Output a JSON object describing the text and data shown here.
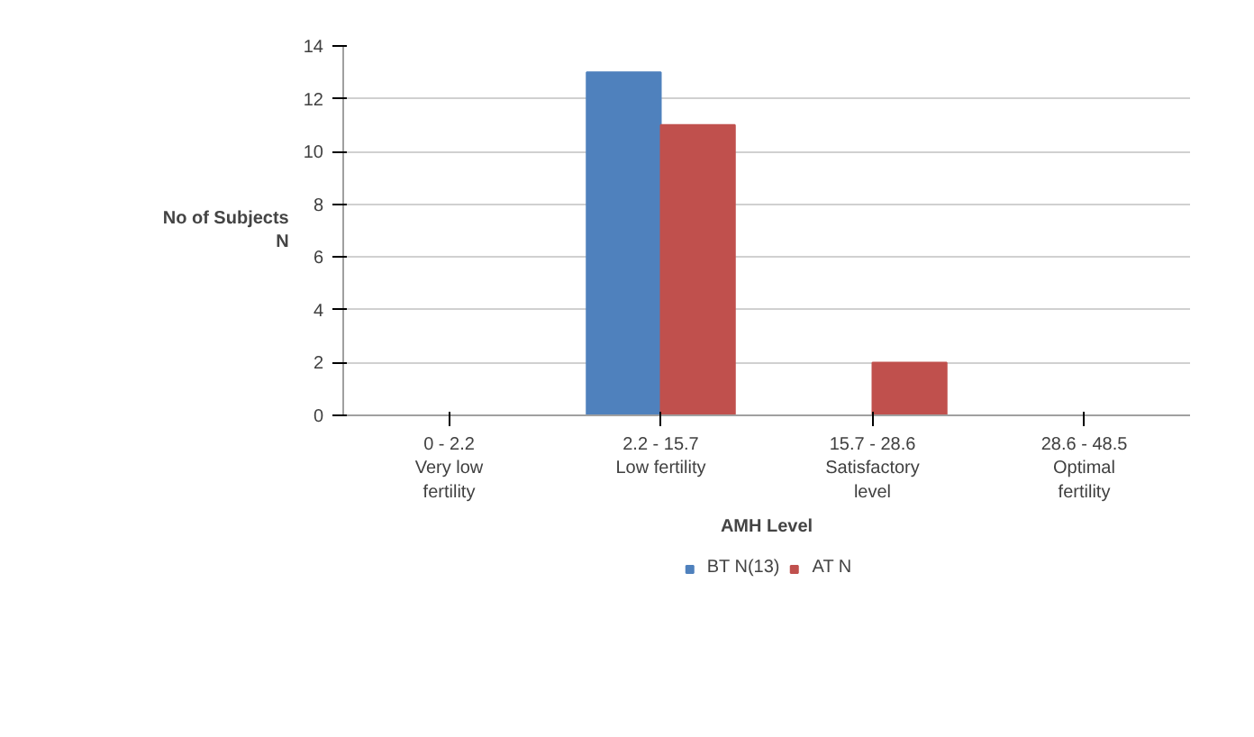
{
  "chart_data": {
    "type": "bar",
    "xlabel": "AMH Level",
    "ylabel": "No of Subjects\nN",
    "categories": [
      "0 - 2.2\nVery low\nfertility",
      "2.2 - 15.7\nLow fertility",
      "15.7 - 28.6\nSatisfactory\nlevel",
      "28.6 - 48.5\nOptimal\nfertility"
    ],
    "series": [
      {
        "name": "BT N(13)",
        "color": "#4f81bd",
        "values": [
          0,
          13,
          0,
          0
        ]
      },
      {
        "name": "AT N",
        "color": "#c0504d",
        "values": [
          0,
          11,
          2,
          0
        ]
      }
    ],
    "ylim": [
      0,
      14
    ],
    "yticks": [
      0,
      2,
      4,
      6,
      8,
      10,
      12,
      14
    ],
    "grid": "y",
    "legend": "bottom"
  }
}
